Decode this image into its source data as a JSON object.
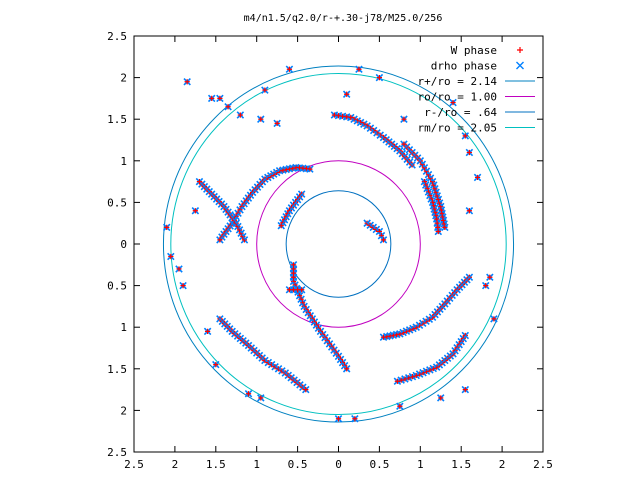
{
  "chart_data": {
    "type": "scatter",
    "title": "m4/n1.5/q2.0/r-+.30-j78/M25.0/256",
    "xlabel": "",
    "ylabel": "",
    "xlim": [
      2.5,
      -2.5
    ],
    "ylim": [
      -2.5,
      2.5
    ],
    "x_ticks": [
      {
        "value": 2.5,
        "label": "2.5"
      },
      {
        "value": 2,
        "label": "2"
      },
      {
        "value": 1.5,
        "label": "1.5"
      },
      {
        "value": 1,
        "label": "1"
      },
      {
        "value": 0.5,
        "label": "0.5"
      },
      {
        "value": 0,
        "label": "0"
      },
      {
        "value": -0.5,
        "label": "0.5"
      },
      {
        "value": -1,
        "label": "1"
      },
      {
        "value": -1.5,
        "label": "1.5"
      },
      {
        "value": -2,
        "label": "2"
      },
      {
        "value": -2.5,
        "label": "2.5"
      }
    ],
    "y_ticks": [
      {
        "value": 2.5,
        "label": "2.5"
      },
      {
        "value": 2,
        "label": "2"
      },
      {
        "value": 1.5,
        "label": "1.5"
      },
      {
        "value": 1,
        "label": "1"
      },
      {
        "value": 0.5,
        "label": "0.5"
      },
      {
        "value": 0,
        "label": "0"
      },
      {
        "value": -0.5,
        "label": "0.5"
      },
      {
        "value": -1,
        "label": "1"
      },
      {
        "value": -1.5,
        "label": "1.5"
      },
      {
        "value": -2,
        "label": "2"
      },
      {
        "value": -2.5,
        "label": "2.5"
      }
    ],
    "grid": false,
    "legend_position": "top-right",
    "phase_series": [
      {
        "name": "W phase",
        "marker": "plus",
        "color": "#ff0000"
      },
      {
        "name": "drho phase",
        "marker": "cross",
        "color": "#0080ff"
      }
    ],
    "circles": [
      {
        "name": "r+/ro = 2.14",
        "radius": 2.14,
        "color": "#0080c0"
      },
      {
        "name": "ro/ro = 1.00",
        "radius": 1.0,
        "color": "#c000c0"
      },
      {
        "name": "r-/ro = .64",
        "radius": 0.64,
        "color": "#0070c0"
      },
      {
        "name": "rm/ro = 2.05",
        "radius": 2.05,
        "color": "#00c0c0"
      }
    ],
    "arms": [
      {
        "points": [
          [
            0.35,
            0.9
          ],
          [
            0.52,
            0.92
          ],
          [
            0.72,
            0.88
          ],
          [
            0.9,
            0.78
          ],
          [
            1.05,
            0.62
          ],
          [
            1.18,
            0.45
          ],
          [
            1.3,
            0.25
          ],
          [
            1.45,
            0.05
          ]
        ]
      },
      {
        "points": [
          [
            0.45,
            0.6
          ],
          [
            0.6,
            0.4
          ],
          [
            0.7,
            0.22
          ]
        ]
      },
      {
        "points": [
          [
            0.55,
            -0.25
          ],
          [
            0.55,
            -0.45
          ],
          [
            0.42,
            -0.75
          ],
          [
            0.22,
            -1.05
          ],
          [
            0.0,
            -1.35
          ],
          [
            -0.1,
            -1.5
          ]
        ]
      },
      {
        "points": [
          [
            1.45,
            -0.9
          ],
          [
            1.3,
            -1.05
          ],
          [
            1.1,
            -1.22
          ],
          [
            0.9,
            -1.4
          ],
          [
            0.65,
            -1.55
          ],
          [
            0.4,
            -1.75
          ]
        ]
      },
      {
        "points": [
          [
            -1.6,
            -0.4
          ],
          [
            -1.45,
            -0.55
          ],
          [
            -1.3,
            -0.72
          ],
          [
            -1.15,
            -0.88
          ],
          [
            -0.95,
            -1.0
          ],
          [
            -0.75,
            -1.08
          ],
          [
            -0.55,
            -1.12
          ]
        ]
      },
      {
        "points": [
          [
            -1.55,
            -1.1
          ],
          [
            -1.4,
            -1.32
          ],
          [
            -1.2,
            -1.48
          ],
          [
            -0.95,
            -1.58
          ],
          [
            -0.72,
            -1.65
          ]
        ]
      },
      {
        "points": [
          [
            -0.9,
            0.95
          ],
          [
            -0.75,
            1.12
          ],
          [
            -0.55,
            1.28
          ],
          [
            -0.35,
            1.42
          ],
          [
            -0.15,
            1.52
          ],
          [
            0.05,
            1.55
          ]
        ]
      },
      {
        "points": [
          [
            -1.05,
            0.75
          ],
          [
            -1.15,
            0.5
          ],
          [
            -1.2,
            0.3
          ],
          [
            -1.22,
            0.15
          ]
        ]
      },
      {
        "points": [
          [
            -1.3,
            0.2
          ],
          [
            -1.25,
            0.45
          ],
          [
            -1.15,
            0.75
          ],
          [
            -1.0,
            1.0
          ],
          [
            -0.8,
            1.2
          ]
        ]
      },
      {
        "points": [
          [
            -0.35,
            0.25
          ],
          [
            -0.5,
            0.15
          ],
          [
            -0.55,
            0.05
          ]
        ]
      },
      {
        "points": [
          [
            0.45,
            -0.55
          ],
          [
            0.6,
            -0.55
          ]
        ]
      },
      {
        "points": [
          [
            1.15,
            0.05
          ],
          [
            1.25,
            0.25
          ],
          [
            1.4,
            0.45
          ],
          [
            1.55,
            0.6
          ],
          [
            1.7,
            0.75
          ]
        ]
      }
    ],
    "scattered_points": [
      [
        1.85,
        1.95
      ],
      [
        1.55,
        1.75
      ],
      [
        1.45,
        1.75
      ],
      [
        1.35,
        1.65
      ],
      [
        1.2,
        1.55
      ],
      [
        0.95,
        1.5
      ],
      [
        0.75,
        1.45
      ],
      [
        -0.25,
        2.1
      ],
      [
        -0.1,
        1.8
      ],
      [
        -0.5,
        2.0
      ],
      [
        -0.8,
        1.5
      ],
      [
        -1.4,
        1.7
      ],
      [
        -1.55,
        1.3
      ],
      [
        -1.6,
        1.1
      ],
      [
        -1.7,
        0.8
      ],
      [
        -1.6,
        0.4
      ],
      [
        2.1,
        0.2
      ],
      [
        1.75,
        0.4
      ],
      [
        1.9,
        -0.5
      ],
      [
        1.6,
        -1.05
      ],
      [
        1.5,
        -1.45
      ],
      [
        1.1,
        -1.8
      ],
      [
        0.95,
        -1.85
      ],
      [
        -1.85,
        -0.4
      ],
      [
        -1.9,
        -0.9
      ],
      [
        -1.8,
        -0.5
      ],
      [
        -1.55,
        -1.75
      ],
      [
        -1.25,
        -1.85
      ],
      [
        -0.75,
        -1.95
      ],
      [
        -0.2,
        -2.1
      ],
      [
        0.0,
        -2.1
      ],
      [
        2.05,
        -0.15
      ],
      [
        1.95,
        -0.3
      ],
      [
        0.6,
        2.1
      ],
      [
        0.9,
        1.85
      ]
    ]
  }
}
